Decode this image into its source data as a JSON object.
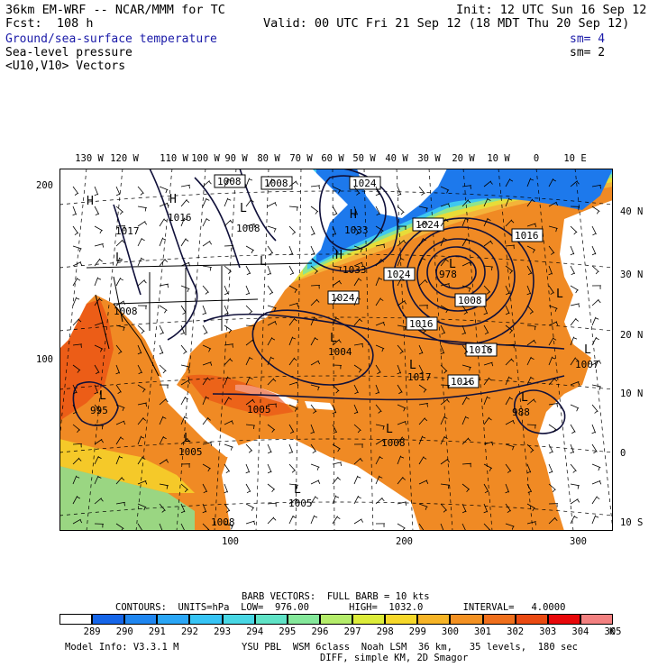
{
  "header": {
    "model_line": "36km EM-WRF -- NCAR/MMM for TC",
    "init_line": "Init: 12 UTC Sun 16 Sep 12",
    "fcst_line": "Fcst:  108 h",
    "valid_line": "Valid: 00 UTC Fri 21 Sep 12 (18 MDT Thu 20 Sep 12)",
    "field1": "Ground/sea-surface temperature",
    "field1_sm": "sm= 4",
    "field2": "Sea-level pressure",
    "field2_sm": "sm= 2",
    "field3": "<U10,V10> Vectors"
  },
  "lon_labels": [
    "130 W",
    "120 W",
    "110 W",
    "100 W",
    "90 W",
    "80 W",
    "70 W",
    "60 W",
    "50 W",
    "40 W",
    "30 W",
    "20 W",
    "10 W",
    "0",
    "10 E"
  ],
  "lat_labels": [
    "40 N",
    "30 N",
    "20 N",
    "10 N",
    "0",
    "10 S"
  ],
  "grid_left": [
    "200",
    "100"
  ],
  "grid_bottom": [
    "100",
    "200",
    "300"
  ],
  "pressure_labels": [
    "1008",
    "1008",
    "1024",
    "1016",
    "1017",
    "1024",
    "1016",
    "1033",
    "1033",
    "1024",
    "978",
    "1008",
    "1024",
    "1016",
    "1008",
    "1004",
    "1016",
    "1016",
    "1017",
    "1016",
    "1007",
    "995",
    "1005",
    "988",
    "1008",
    "1005",
    "1005",
    "1008",
    "1008"
  ],
  "highs_lows": [
    "H",
    "L",
    "H",
    "L",
    "L",
    "H",
    "L",
    "H",
    "L",
    "L",
    "L",
    "L",
    "L",
    "L",
    "L",
    "L",
    "L"
  ],
  "footer": {
    "barb_line": "BARB VECTORS:  FULL BARB = 10 kts",
    "contours_line": "CONTOURS:  UNITS=hPa  LOW=  976.00       HIGH=  1032.0       INTERVAL=   4.0000",
    "model_info": "Model Info: V3.3.1 M",
    "physics_line": "YSU PBL  WSM 6class  Noah LSM  36 km,   35 levels,  180 sec",
    "diff_line": "DIFF, simple KM, 2D Smagor",
    "unit": "K"
  },
  "colorbar": {
    "labels": [
      "289",
      "290",
      "291",
      "292",
      "293",
      "294",
      "295",
      "296",
      "297",
      "298",
      "299",
      "300",
      "301",
      "302",
      "303",
      "304",
      "305"
    ],
    "colors": [
      "#ffffff",
      "#1565e8",
      "#1f86f0",
      "#2aa6f6",
      "#36c4f5",
      "#48d7e4",
      "#5fe3c6",
      "#84e89a",
      "#b4ec6a",
      "#dcec3a",
      "#f6d82a",
      "#f6b426",
      "#f39122",
      "#ef6f1c",
      "#ea4a12",
      "#e8080a",
      "#f28080"
    ]
  },
  "colors": {
    "ocean_orange": "#f08a24",
    "ocean_light": "#f4b33a",
    "ocean_yellow": "#e8dc38",
    "ocean_green": "#8fe48c",
    "ocean_cyan": "#3ec7ef",
    "ocean_blue": "#1d79ec",
    "land": "#ffffff",
    "contour": "#10103a"
  }
}
